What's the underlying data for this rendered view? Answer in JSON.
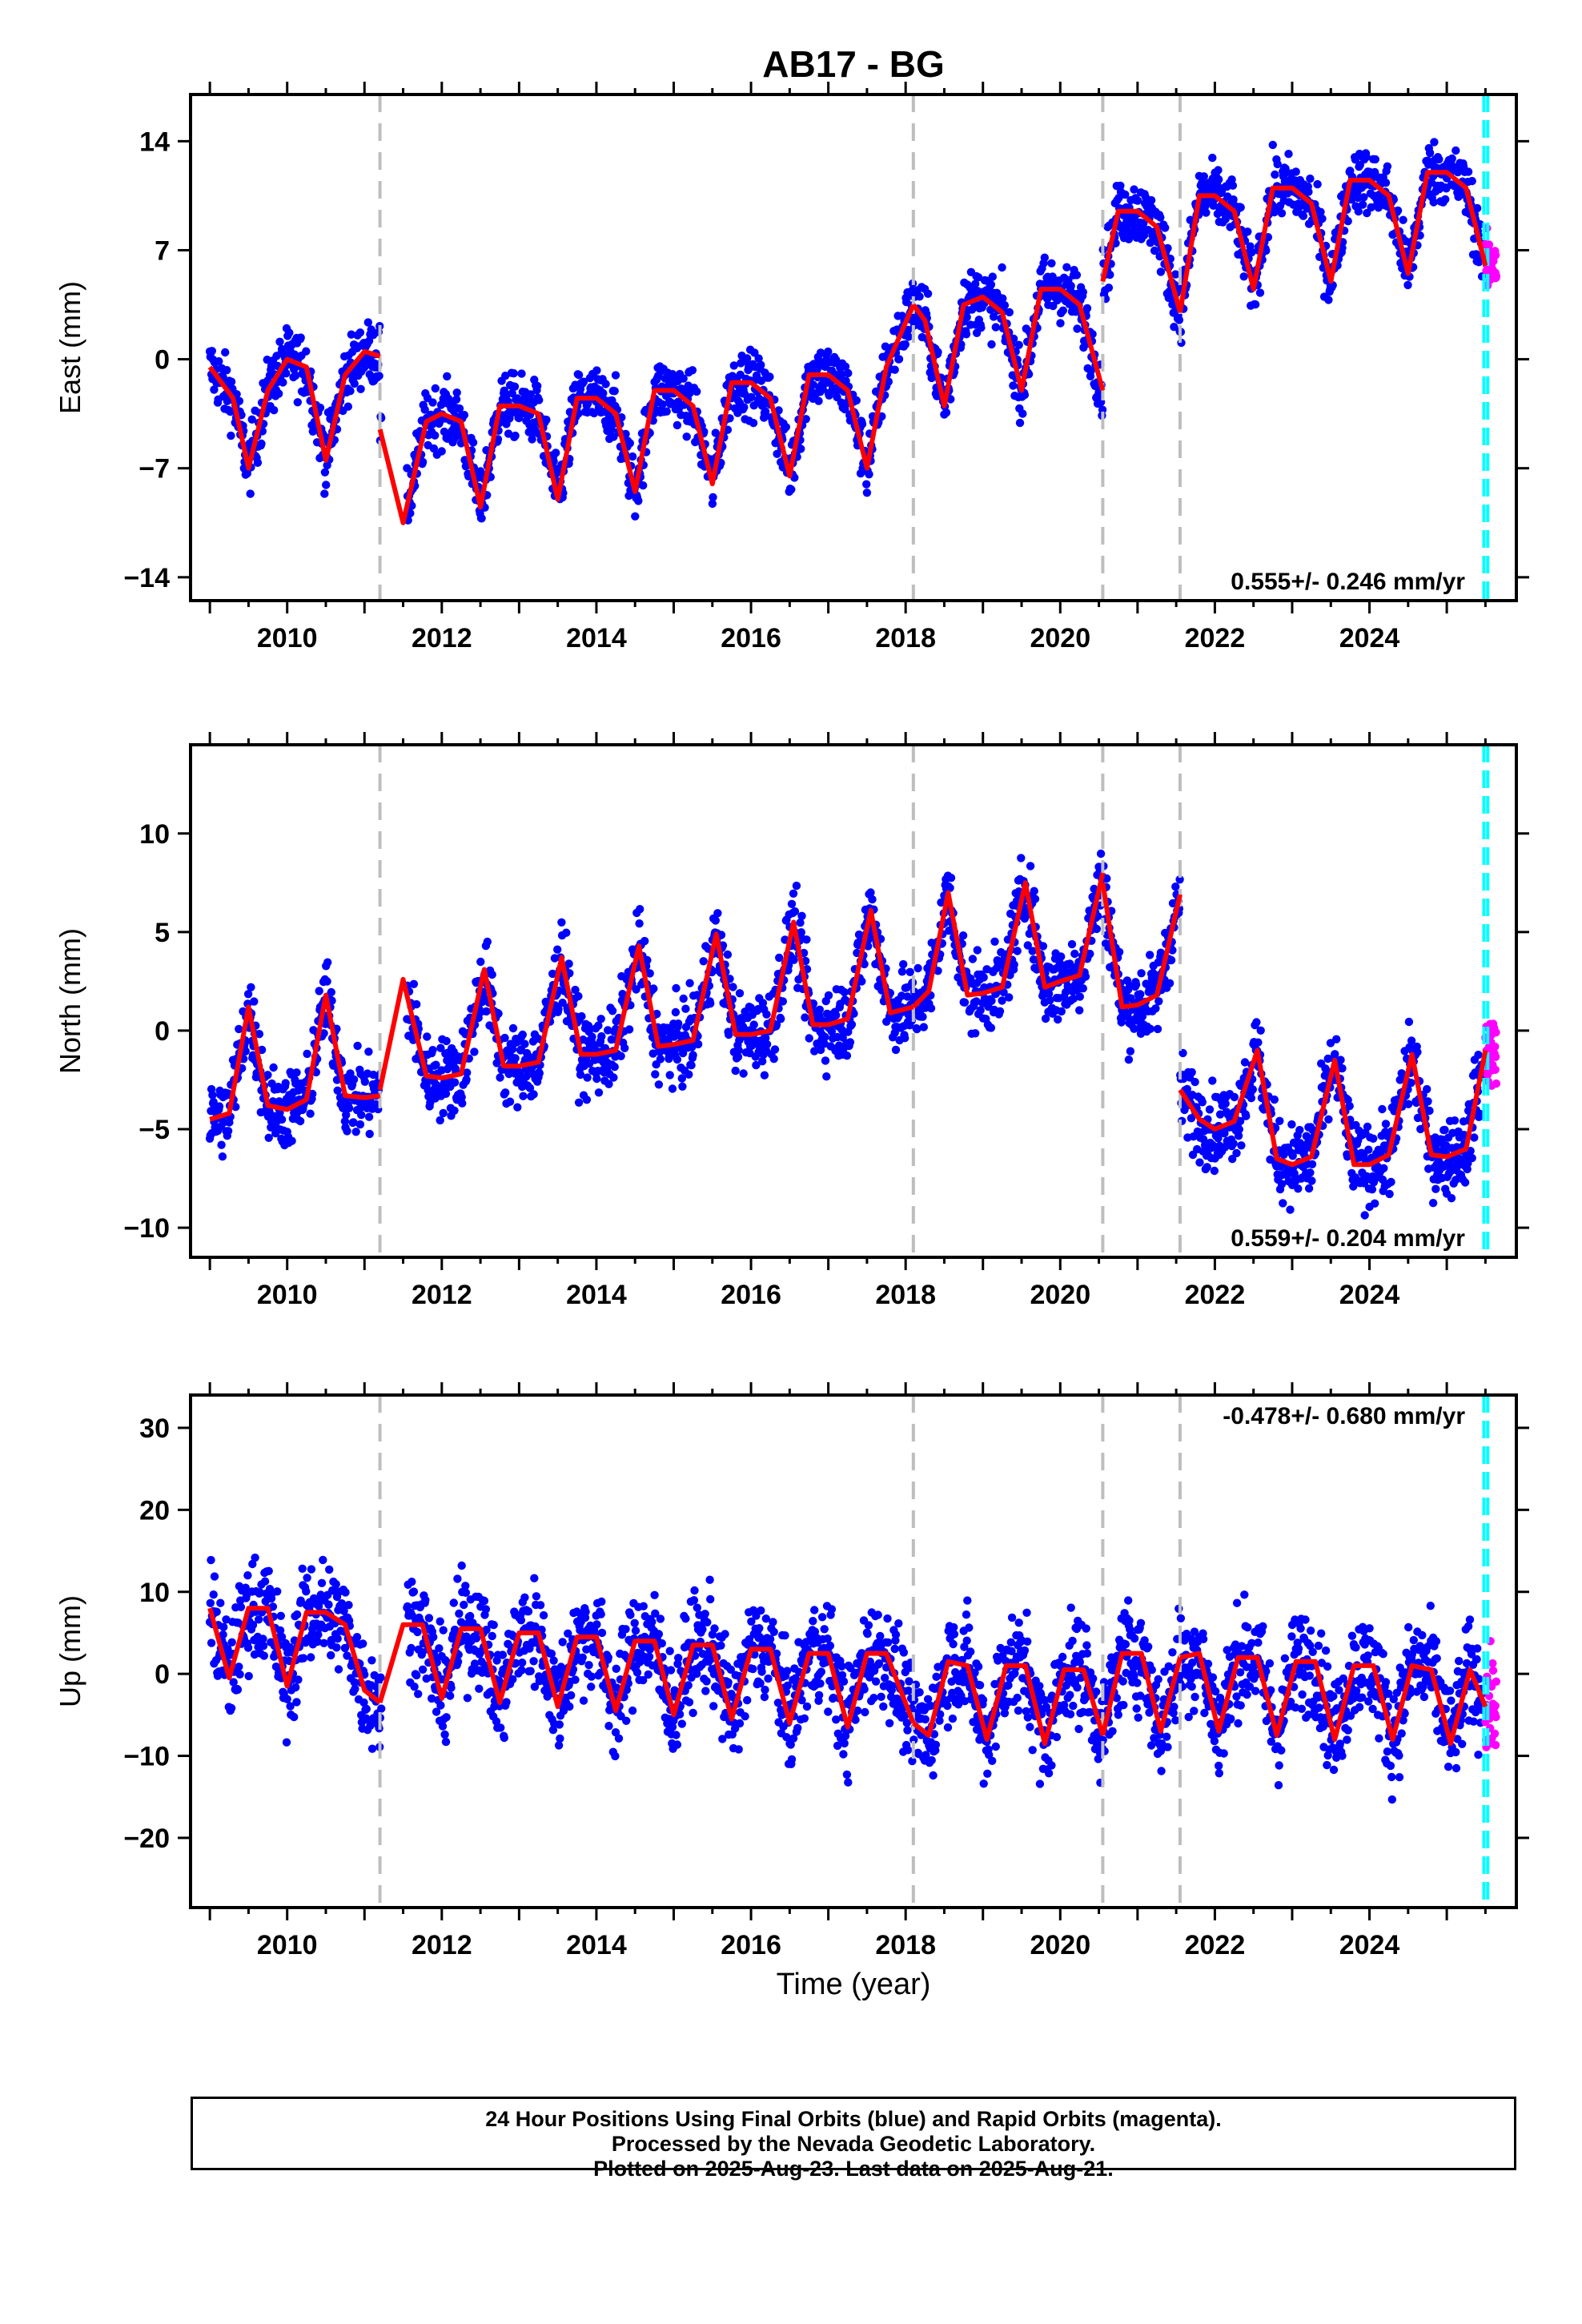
{
  "title": "AB17 - BG",
  "xlabel": "Time (year)",
  "colors": {
    "final": "#0000ff",
    "rapid": "#ff00ff",
    "model": "#ff0000",
    "break": "#bebebe",
    "latest": "#00ffff"
  },
  "caption": [
    "24 Hour Positions Using Final Orbits (blue) and Rapid Orbits (magenta).",
    "Processed by the Nevada Geodetic Laboratory.",
    "Plotted on 2025-Aug-23. Last data on 2025-Aug-21."
  ],
  "chart_data": [
    {
      "type": "scatter",
      "ylabel": "East (mm)",
      "rate_text": "0.555+/- 0.246 mm/yr",
      "xlim": [
        2008.75,
        2025.9
      ],
      "ylim": [
        -15.5,
        17
      ],
      "xticks": [
        2010,
        2012,
        2014,
        2016,
        2018,
        2020,
        2022,
        2024
      ],
      "yticks": [
        14,
        7,
        0,
        -7,
        -14
      ],
      "break_lines": [
        2011.2,
        2018.1,
        2020.55,
        2021.55
      ],
      "latest_lines": [
        2025.48,
        2025.53
      ],
      "model_segments": [
        {
          "x": [
            2009.0,
            2009.3,
            2009.5,
            2009.75,
            2010.0,
            2010.25,
            2010.5,
            2010.75,
            2011.0,
            2011.2
          ],
          "y": [
            -0.5,
            -2.5,
            -7.0,
            -2.0,
            0.0,
            -0.5,
            -6.5,
            -1.0,
            0.5,
            0.2
          ]
        },
        {
          "x": [
            2011.2,
            2011.5,
            2011.8,
            2012.0,
            2012.25,
            2012.5,
            2012.75,
            2013.0,
            2013.25,
            2013.5,
            2013.75,
            2014.0,
            2014.25,
            2014.5,
            2014.75,
            2015.0,
            2015.25,
            2015.5,
            2015.75,
            2016.0,
            2016.25,
            2016.5,
            2016.75,
            2017.0,
            2017.25,
            2017.5,
            2017.75,
            2018.1
          ],
          "y": [
            -4.5,
            -10.5,
            -4.0,
            -3.5,
            -4.0,
            -9.5,
            -3.0,
            -3.0,
            -3.5,
            -9.0,
            -2.5,
            -2.5,
            -3.5,
            -8.5,
            -2.0,
            -2.0,
            -3.0,
            -8.0,
            -1.5,
            -1.5,
            -2.5,
            -7.5,
            -1.0,
            -1.0,
            -2.0,
            -7.0,
            -0.5,
            3.5
          ]
        },
        {
          "x": [
            2018.1,
            2018.25,
            2018.5,
            2018.75,
            2019.0,
            2019.25,
            2019.5,
            2019.75,
            2020.0,
            2020.25,
            2020.55
          ],
          "y": [
            3.5,
            2.5,
            -3.0,
            3.5,
            4.0,
            3.0,
            -2.0,
            4.5,
            4.5,
            3.5,
            -2.0
          ]
        },
        {
          "x": [
            2020.55,
            2020.75,
            2021.0,
            2021.25,
            2021.55
          ],
          "y": [
            5.0,
            9.5,
            9.5,
            8.5,
            3.0
          ]
        },
        {
          "x": [
            2021.55,
            2021.8,
            2022.0,
            2022.25,
            2022.5,
            2022.75,
            2023.0,
            2023.25,
            2023.5,
            2023.75,
            2024.0,
            2024.25,
            2024.5,
            2024.75,
            2025.0,
            2025.25,
            2025.5
          ],
          "y": [
            3.0,
            10.5,
            10.5,
            9.5,
            4.5,
            11.0,
            11.0,
            10.0,
            5.0,
            11.5,
            11.5,
            10.5,
            5.5,
            12.0,
            12.0,
            11.0,
            6.0
          ]
        }
      ]
    },
    {
      "type": "scatter",
      "ylabel": "North (mm)",
      "rate_text": "0.559+/- 0.204 mm/yr",
      "xlim": [
        2008.75,
        2025.9
      ],
      "ylim": [
        -11.5,
        14.5
      ],
      "xticks": [
        2010,
        2012,
        2014,
        2016,
        2018,
        2020,
        2022,
        2024
      ],
      "yticks": [
        10,
        5,
        0,
        -5,
        -10
      ],
      "break_lines": [
        2011.2,
        2018.1,
        2020.55,
        2021.55
      ],
      "latest_lines": [
        2025.48,
        2025.53
      ],
      "model_segments": [
        {
          "x": [
            2009.0,
            2009.25,
            2009.5,
            2009.75,
            2010.0,
            2010.25,
            2010.5,
            2010.75,
            2011.0,
            2011.2
          ],
          "y": [
            -4.5,
            -4.2,
            1.2,
            -3.8,
            -4.0,
            -3.5,
            1.8,
            -3.3,
            -3.4,
            -3.3
          ]
        },
        {
          "x": [
            2011.2,
            2011.5,
            2011.8,
            2012.0,
            2012.25,
            2012.55,
            2012.8,
            2013.0,
            2013.25,
            2013.55,
            2013.8,
            2014.0,
            2014.25,
            2014.55,
            2014.8,
            2015.0,
            2015.25,
            2015.55,
            2015.8,
            2016.0,
            2016.25,
            2016.55,
            2016.8,
            2017.0,
            2017.25,
            2017.55,
            2017.8,
            2018.1
          ],
          "y": [
            -3.0,
            2.6,
            -2.3,
            -2.4,
            -2.2,
            3.1,
            -1.8,
            -1.8,
            -1.6,
            3.7,
            -1.2,
            -1.2,
            -1.0,
            4.3,
            -0.8,
            -0.7,
            -0.5,
            4.9,
            -0.2,
            -0.2,
            0.0,
            5.5,
            0.3,
            0.3,
            0.6,
            6.1,
            0.9,
            1.2
          ]
        },
        {
          "x": [
            2018.1,
            2018.3,
            2018.55,
            2018.8,
            2019.0,
            2019.25,
            2019.55,
            2019.8,
            2020.0,
            2020.25,
            2020.55
          ],
          "y": [
            1.2,
            2.0,
            7.0,
            1.8,
            1.9,
            2.2,
            7.5,
            2.2,
            2.5,
            2.8,
            8.0
          ]
        },
        {
          "x": [
            2020.55,
            2020.8,
            2021.0,
            2021.25,
            2021.55
          ],
          "y": [
            7.5,
            1.2,
            1.3,
            1.8,
            6.9
          ]
        },
        {
          "x": [
            2021.55,
            2021.8,
            2022.0,
            2022.25,
            2022.55,
            2022.8,
            2023.0,
            2023.25,
            2023.55,
            2023.8,
            2024.0,
            2024.25,
            2024.55,
            2024.8,
            2025.0,
            2025.25,
            2025.5
          ],
          "y": [
            -3.0,
            -4.5,
            -5.0,
            -4.6,
            -1.0,
            -6.5,
            -6.8,
            -6.4,
            -1.5,
            -6.8,
            -6.8,
            -6.3,
            -1.2,
            -6.3,
            -6.4,
            -6.0,
            -1.0
          ]
        }
      ]
    },
    {
      "type": "scatter",
      "ylabel": "Up (mm)",
      "rate_text": "-0.478+/- 0.680 mm/yr",
      "xlim": [
        2008.75,
        2025.9
      ],
      "ylim": [
        -28.5,
        34
      ],
      "xticks": [
        2010,
        2012,
        2014,
        2016,
        2018,
        2020,
        2022,
        2024
      ],
      "yticks": [
        30,
        20,
        10,
        0,
        -10,
        -20
      ],
      "break_lines": [
        2011.2,
        2018.1,
        2020.55,
        2021.55
      ],
      "latest_lines": [
        2025.48,
        2025.53
      ],
      "model_segments": [
        {
          "x": [
            2009.0,
            2009.25,
            2009.5,
            2009.75,
            2010.0,
            2010.25,
            2010.5,
            2010.75,
            2011.0,
            2011.2
          ],
          "y": [
            8.0,
            -0.5,
            8.0,
            8.0,
            -1.5,
            7.5,
            7.5,
            6.0,
            -2.0,
            -3.5
          ]
        },
        {
          "x": [
            2011.2,
            2011.5,
            2011.75,
            2012.0,
            2012.25,
            2012.5,
            2012.75,
            2013.0,
            2013.25,
            2013.5,
            2013.75,
            2014.0,
            2014.25,
            2014.5,
            2014.75,
            2015.0,
            2015.25,
            2015.5,
            2015.75,
            2016.0,
            2016.25,
            2016.5,
            2016.75,
            2017.0,
            2017.25,
            2017.5,
            2017.75,
            2018.1
          ],
          "y": [
            -3.5,
            6.0,
            6.0,
            -3.0,
            5.5,
            5.5,
            -3.5,
            5.0,
            5.0,
            -4.0,
            4.5,
            4.5,
            -4.5,
            4.0,
            4.0,
            -5.0,
            3.5,
            3.5,
            -5.5,
            3.0,
            3.0,
            -6.0,
            2.5,
            2.5,
            -6.5,
            2.5,
            2.5,
            -6.0
          ]
        },
        {
          "x": [
            2018.1,
            2018.3,
            2018.55,
            2018.8,
            2019.05,
            2019.3,
            2019.55,
            2019.8,
            2020.05,
            2020.3,
            2020.55
          ],
          "y": [
            -6.0,
            -7.5,
            1.5,
            1.0,
            -8.0,
            1.0,
            1.0,
            -8.5,
            0.5,
            0.5,
            -7.5
          ]
        },
        {
          "x": [
            2020.55,
            2020.8,
            2021.05,
            2021.3,
            2021.55
          ],
          "y": [
            -7.5,
            2.5,
            2.5,
            -7.0,
            2.0
          ]
        },
        {
          "x": [
            2021.55,
            2021.8,
            2022.05,
            2022.3,
            2022.55,
            2022.8,
            2023.05,
            2023.3,
            2023.55,
            2023.8,
            2024.05,
            2024.3,
            2024.55,
            2024.8,
            2025.05,
            2025.3,
            2025.5
          ],
          "y": [
            2.0,
            2.5,
            -7.0,
            2.0,
            2.0,
            -7.5,
            1.5,
            1.5,
            -8.0,
            1.0,
            1.0,
            -8.0,
            1.0,
            0.5,
            -8.5,
            0.5,
            -4.0
          ]
        }
      ]
    }
  ]
}
